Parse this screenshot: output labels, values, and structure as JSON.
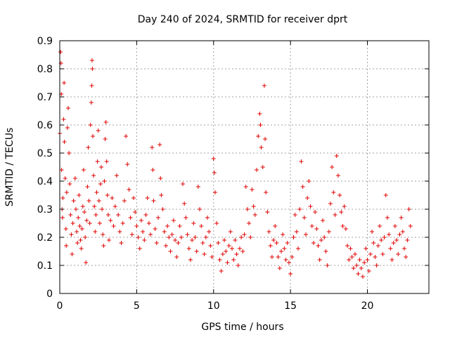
{
  "chart_data": {
    "type": "scatter",
    "title": "Day 240 of 2024, SRMTID for receiver dprt",
    "xlabel": "GPS time / hours",
    "ylabel": "SRMTID / TECUs",
    "xlim": [
      0,
      24
    ],
    "ylim": [
      0,
      0.9
    ],
    "x_ticks": [
      0,
      5,
      10,
      15,
      20
    ],
    "y_ticks": [
      0,
      0.1,
      0.2,
      0.3,
      0.4,
      0.5,
      0.6,
      0.7,
      0.8,
      0.9
    ],
    "x_tick_labels": [
      "0",
      "5",
      "10",
      "15",
      "20"
    ],
    "y_tick_labels": [
      "0",
      "0.1",
      "0.2",
      "0.3",
      "0.4",
      "0.5",
      "0.6",
      "0.7",
      "0.8",
      "0.9"
    ],
    "grid": true,
    "marker": "+",
    "color": "#e00000",
    "series": [
      {
        "name": "SRMTID",
        "points": [
          [
            0.0,
            0.57
          ],
          [
            0.05,
            0.86
          ],
          [
            0.08,
            0.82
          ],
          [
            0.1,
            0.71
          ],
          [
            0.12,
            0.44
          ],
          [
            0.15,
            0.3
          ],
          [
            0.18,
            0.27
          ],
          [
            0.2,
            0.34
          ],
          [
            0.25,
            0.62
          ],
          [
            0.28,
            0.75
          ],
          [
            0.3,
            0.54
          ],
          [
            0.35,
            0.41
          ],
          [
            0.4,
            0.23
          ],
          [
            0.42,
            0.17
          ],
          [
            0.45,
            0.36
          ],
          [
            0.5,
            0.59
          ],
          [
            0.55,
            0.66
          ],
          [
            0.6,
            0.5
          ],
          [
            0.65,
            0.39
          ],
          [
            0.7,
            0.28
          ],
          [
            0.75,
            0.21
          ],
          [
            0.8,
            0.14
          ],
          [
            0.85,
            0.25
          ],
          [
            0.9,
            0.33
          ],
          [
            1.0,
            0.41
          ],
          [
            1.05,
            0.3
          ],
          [
            1.1,
            0.22
          ],
          [
            1.15,
            0.18
          ],
          [
            1.2,
            0.27
          ],
          [
            1.25,
            0.35
          ],
          [
            1.3,
            0.24
          ],
          [
            1.35,
            0.19
          ],
          [
            1.4,
            0.16
          ],
          [
            1.45,
            0.23
          ],
          [
            1.5,
            0.31
          ],
          [
            1.55,
            0.44
          ],
          [
            1.6,
            0.29
          ],
          [
            1.65,
            0.2
          ],
          [
            1.7,
            0.11
          ],
          [
            1.75,
            0.26
          ],
          [
            1.8,
            0.38
          ],
          [
            1.85,
            0.52
          ],
          [
            1.9,
            0.33
          ],
          [
            1.95,
            0.25
          ],
          [
            2.0,
            0.6
          ],
          [
            2.05,
            0.68
          ],
          [
            2.08,
            0.74
          ],
          [
            2.1,
            0.83
          ],
          [
            2.12,
            0.8
          ],
          [
            2.15,
            0.56
          ],
          [
            2.2,
            0.42
          ],
          [
            2.25,
            0.31
          ],
          [
            2.3,
            0.22
          ],
          [
            2.35,
            0.28
          ],
          [
            2.4,
            0.36
          ],
          [
            2.45,
            0.47
          ],
          [
            2.5,
            0.58
          ],
          [
            2.55,
            0.33
          ],
          [
            2.6,
            0.25
          ],
          [
            2.65,
            0.39
          ],
          [
            2.7,
            0.45
          ],
          [
            2.75,
            0.3
          ],
          [
            2.8,
            0.21
          ],
          [
            2.85,
            0.17
          ],
          [
            2.9,
            0.4
          ],
          [
            2.95,
            0.55
          ],
          [
            3.0,
            0.61
          ],
          [
            3.05,
            0.47
          ],
          [
            3.1,
            0.35
          ],
          [
            3.15,
            0.28
          ],
          [
            3.2,
            0.19
          ],
          [
            3.3,
            0.26
          ],
          [
            3.4,
            0.34
          ],
          [
            3.5,
            0.24
          ],
          [
            3.6,
            0.31
          ],
          [
            3.7,
            0.42
          ],
          [
            3.8,
            0.28
          ],
          [
            3.9,
            0.22
          ],
          [
            4.0,
            0.18
          ],
          [
            4.1,
            0.25
          ],
          [
            4.2,
            0.33
          ],
          [
            4.3,
            0.56
          ],
          [
            4.4,
            0.46
          ],
          [
            4.5,
            0.37
          ],
          [
            4.6,
            0.27
          ],
          [
            4.7,
            0.21
          ],
          [
            4.8,
            0.34
          ],
          [
            4.9,
            0.29
          ],
          [
            5.0,
            0.24
          ],
          [
            5.1,
            0.2
          ],
          [
            5.2,
            0.16
          ],
          [
            5.3,
            0.26
          ],
          [
            5.4,
            0.22
          ],
          [
            5.5,
            0.19
          ],
          [
            5.6,
            0.28
          ],
          [
            5.7,
            0.34
          ],
          [
            5.8,
            0.25
          ],
          [
            5.9,
            0.21
          ],
          [
            6.0,
            0.52
          ],
          [
            6.05,
            0.44
          ],
          [
            6.1,
            0.33
          ],
          [
            6.2,
            0.23
          ],
          [
            6.3,
            0.18
          ],
          [
            6.4,
            0.27
          ],
          [
            6.5,
            0.53
          ],
          [
            6.55,
            0.41
          ],
          [
            6.6,
            0.35
          ],
          [
            6.7,
            0.3
          ],
          [
            6.8,
            0.22
          ],
          [
            6.9,
            0.17
          ],
          [
            7.0,
            0.24
          ],
          [
            7.1,
            0.2
          ],
          [
            7.2,
            0.15
          ],
          [
            7.3,
            0.21
          ],
          [
            7.4,
            0.26
          ],
          [
            7.5,
            0.19
          ],
          [
            7.6,
            0.13
          ],
          [
            7.7,
            0.18
          ],
          [
            7.8,
            0.24
          ],
          [
            7.9,
            0.2
          ],
          [
            8.0,
            0.39
          ],
          [
            8.1,
            0.32
          ],
          [
            8.2,
            0.27
          ],
          [
            8.3,
            0.21
          ],
          [
            8.4,
            0.16
          ],
          [
            8.5,
            0.12
          ],
          [
            8.6,
            0.19
          ],
          [
            8.7,
            0.25
          ],
          [
            8.8,
            0.2
          ],
          [
            8.9,
            0.15
          ],
          [
            9.0,
            0.38
          ],
          [
            9.1,
            0.3
          ],
          [
            9.2,
            0.24
          ],
          [
            9.3,
            0.18
          ],
          [
            9.4,
            0.14
          ],
          [
            9.5,
            0.2
          ],
          [
            9.6,
            0.27
          ],
          [
            9.7,
            0.22
          ],
          [
            9.8,
            0.17
          ],
          [
            9.9,
            0.13
          ],
          [
            10.0,
            0.48
          ],
          [
            10.05,
            0.43
          ],
          [
            10.1,
            0.36
          ],
          [
            10.2,
            0.25
          ],
          [
            10.3,
            0.18
          ],
          [
            10.4,
            0.12
          ],
          [
            10.5,
            0.08
          ],
          [
            10.6,
            0.14
          ],
          [
            10.7,
            0.19
          ],
          [
            10.8,
            0.15
          ],
          [
            10.9,
            0.11
          ],
          [
            11.0,
            0.17
          ],
          [
            11.1,
            0.22
          ],
          [
            11.2,
            0.16
          ],
          [
            11.3,
            0.12
          ],
          [
            11.4,
            0.19
          ],
          [
            11.5,
            0.14
          ],
          [
            11.6,
            0.1
          ],
          [
            11.7,
            0.16
          ],
          [
            11.8,
            0.2
          ],
          [
            11.9,
            0.15
          ],
          [
            12.0,
            0.21
          ],
          [
            12.1,
            0.38
          ],
          [
            12.2,
            0.3
          ],
          [
            12.3,
            0.25
          ],
          [
            12.4,
            0.2
          ],
          [
            12.5,
            0.37
          ],
          [
            12.6,
            0.31
          ],
          [
            12.7,
            0.28
          ],
          [
            12.8,
            0.44
          ],
          [
            12.9,
            0.56
          ],
          [
            13.0,
            0.64
          ],
          [
            13.05,
            0.6
          ],
          [
            13.1,
            0.52
          ],
          [
            13.2,
            0.45
          ],
          [
            13.3,
            0.74
          ],
          [
            13.35,
            0.55
          ],
          [
            13.4,
            0.36
          ],
          [
            13.5,
            0.29
          ],
          [
            13.6,
            0.22
          ],
          [
            13.7,
            0.17
          ],
          [
            13.8,
            0.13
          ],
          [
            13.9,
            0.19
          ],
          [
            14.0,
            0.24
          ],
          [
            14.1,
            0.18
          ],
          [
            14.2,
            0.13
          ],
          [
            14.3,
            0.09
          ],
          [
            14.4,
            0.15
          ],
          [
            14.5,
            0.21
          ],
          [
            14.6,
            0.16
          ],
          [
            14.7,
            0.12
          ],
          [
            14.8,
            0.18
          ],
          [
            14.9,
            0.11
          ],
          [
            15.0,
            0.07
          ],
          [
            15.1,
            0.13
          ],
          [
            15.2,
            0.2
          ],
          [
            15.3,
            0.28
          ],
          [
            15.4,
            0.22
          ],
          [
            15.5,
            0.16
          ],
          [
            15.6,
            0.3
          ],
          [
            15.7,
            0.47
          ],
          [
            15.8,
            0.38
          ],
          [
            15.9,
            0.27
          ],
          [
            16.0,
            0.21
          ],
          [
            16.1,
            0.34
          ],
          [
            16.2,
            0.4
          ],
          [
            16.3,
            0.31
          ],
          [
            16.4,
            0.24
          ],
          [
            16.5,
            0.18
          ],
          [
            16.6,
            0.29
          ],
          [
            16.7,
            0.23
          ],
          [
            16.8,
            0.17
          ],
          [
            16.9,
            0.12
          ],
          [
            17.0,
            0.19
          ],
          [
            17.1,
            0.26
          ],
          [
            17.2,
            0.2
          ],
          [
            17.3,
            0.15
          ],
          [
            17.4,
            0.1
          ],
          [
            17.5,
            0.22
          ],
          [
            17.6,
            0.32
          ],
          [
            17.7,
            0.45
          ],
          [
            17.8,
            0.36
          ],
          [
            17.9,
            0.28
          ],
          [
            18.0,
            0.49
          ],
          [
            18.1,
            0.42
          ],
          [
            18.2,
            0.35
          ],
          [
            18.3,
            0.29
          ],
          [
            18.4,
            0.24
          ],
          [
            18.5,
            0.31
          ],
          [
            18.6,
            0.23
          ],
          [
            18.7,
            0.17
          ],
          [
            18.8,
            0.12
          ],
          [
            18.9,
            0.16
          ],
          [
            19.0,
            0.13
          ],
          [
            19.1,
            0.09
          ],
          [
            19.2,
            0.14
          ],
          [
            19.3,
            0.1
          ],
          [
            19.4,
            0.07
          ],
          [
            19.5,
            0.12
          ],
          [
            19.6,
            0.09
          ],
          [
            19.7,
            0.06
          ],
          [
            19.8,
            0.11
          ],
          [
            19.9,
            0.16
          ],
          [
            20.0,
            0.12
          ],
          [
            20.1,
            0.08
          ],
          [
            20.2,
            0.14
          ],
          [
            20.3,
            0.22
          ],
          [
            20.4,
            0.18
          ],
          [
            20.5,
            0.13
          ],
          [
            20.6,
            0.1
          ],
          [
            20.7,
            0.17
          ],
          [
            20.8,
            0.24
          ],
          [
            20.9,
            0.19
          ],
          [
            21.0,
            0.14
          ],
          [
            21.1,
            0.2
          ],
          [
            21.2,
            0.35
          ],
          [
            21.3,
            0.27
          ],
          [
            21.4,
            0.21
          ],
          [
            21.5,
            0.16
          ],
          [
            21.6,
            0.12
          ],
          [
            21.7,
            0.18
          ],
          [
            21.8,
            0.24
          ],
          [
            21.9,
            0.19
          ],
          [
            22.0,
            0.14
          ],
          [
            22.1,
            0.21
          ],
          [
            22.2,
            0.27
          ],
          [
            22.3,
            0.22
          ],
          [
            22.4,
            0.16
          ],
          [
            22.5,
            0.13
          ],
          [
            22.6,
            0.19
          ],
          [
            22.7,
            0.3
          ],
          [
            22.8,
            0.24
          ]
        ]
      }
    ]
  }
}
